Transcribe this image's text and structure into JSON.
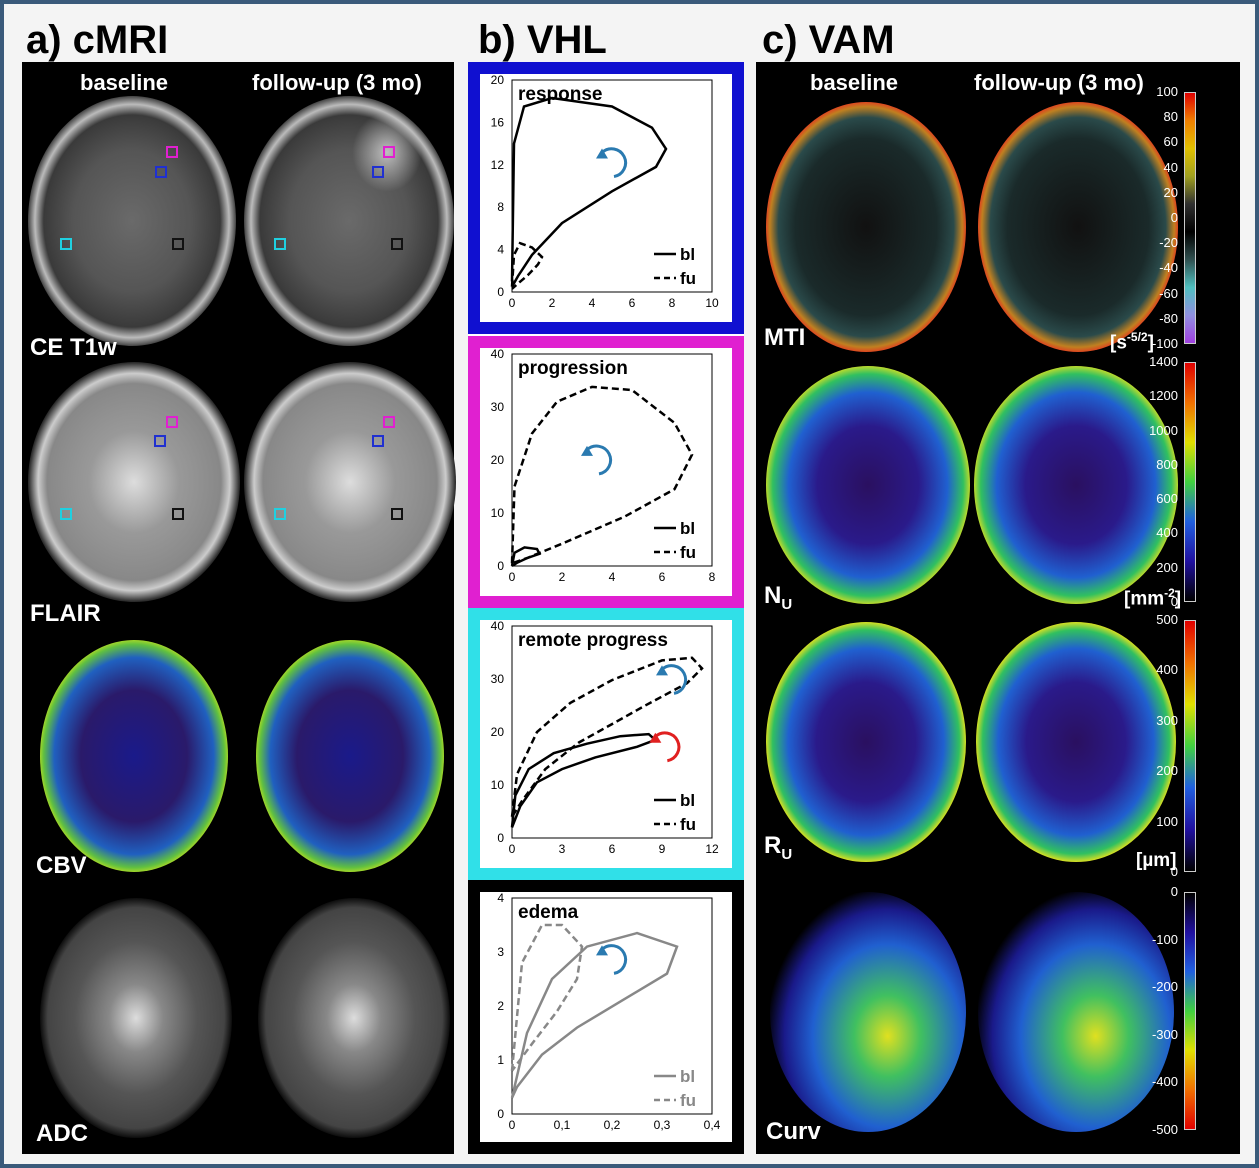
{
  "panel_titles": {
    "a": "a) cMRI",
    "b": "b) VHL",
    "c": "c) VAM"
  },
  "columns": {
    "baseline": "baseline",
    "followup": "follow-up (3 mo)"
  },
  "cmri_rows": [
    "CE T1w",
    "FLAIR",
    "CBV",
    "ADC"
  ],
  "vam_rows": {
    "mti": "MTI",
    "nu": "N",
    "nu_sub": "U",
    "ru": "R",
    "ru_sub": "U",
    "curv": "Curv"
  },
  "vam_units": {
    "mti_base": "[s",
    "mti_sup": "-5/2",
    "mti_close": "]",
    "nu_base": "[mm",
    "nu_sup": "-2",
    "nu_close": "]",
    "ru": "[µm]"
  },
  "colorbars": {
    "mti": [
      "100",
      "80",
      "60",
      "40",
      "20",
      "0",
      "-20",
      "-40",
      "-60",
      "-80",
      "-100"
    ],
    "nu": [
      "1400",
      "1200",
      "1000",
      "800",
      "600",
      "400",
      "200",
      "0"
    ],
    "ru": [
      "500",
      "400",
      "300",
      "200",
      "100",
      "0"
    ],
    "curv": [
      "0",
      "-100",
      "-200",
      "-300",
      "-400",
      "-500"
    ]
  },
  "colors": {
    "roi_magenta": "#e020d0",
    "roi_blue": "#2030d0",
    "roi_cyan": "#20d0e0",
    "roi_black": "#111111",
    "frame": "#3a5a7a",
    "arrow_blue": "#2a7ab0",
    "arrow_red": "#e02020"
  },
  "chart_data": [
    {
      "type": "line",
      "title": "response",
      "border": "#1010d0",
      "x_ticks": [
        "0",
        "2",
        "4",
        "6",
        "8",
        "10"
      ],
      "y_ticks": [
        "0",
        "4",
        "8",
        "12",
        "16",
        "20"
      ],
      "xlim": [
        0,
        10
      ],
      "ylim": [
        0,
        20
      ],
      "series": [
        {
          "name": "bl",
          "style": "solid"
        },
        {
          "name": "fu",
          "style": "dashed"
        }
      ],
      "legend": {
        "bl": "bl",
        "fu": "fu"
      }
    },
    {
      "type": "line",
      "title": "progression",
      "border": "#e020d0",
      "x_ticks": [
        "0",
        "2",
        "4",
        "6",
        "8"
      ],
      "y_ticks": [
        "0",
        "10",
        "20",
        "30",
        "40"
      ],
      "xlim": [
        0,
        8
      ],
      "ylim": [
        0,
        40
      ],
      "series": [
        {
          "name": "bl",
          "style": "solid"
        },
        {
          "name": "fu",
          "style": "dashed"
        }
      ],
      "legend": {
        "bl": "bl",
        "fu": "fu"
      }
    },
    {
      "type": "line",
      "title": "remote progress",
      "border": "#30e0e8",
      "x_ticks": [
        "0",
        "3",
        "6",
        "9",
        "12"
      ],
      "y_ticks": [
        "0",
        "10",
        "20",
        "30",
        "40"
      ],
      "xlim": [
        0,
        12
      ],
      "ylim": [
        0,
        40
      ],
      "series": [
        {
          "name": "bl",
          "style": "solid"
        },
        {
          "name": "fu",
          "style": "dashed"
        }
      ],
      "legend": {
        "bl": "bl",
        "fu": "fu"
      }
    },
    {
      "type": "line",
      "title": "edema",
      "border": "#000000",
      "x_ticks": [
        "0",
        "0,1",
        "0,2",
        "0,3",
        "0,4"
      ],
      "y_ticks": [
        "0",
        "1",
        "2",
        "3",
        "4"
      ],
      "xlim": [
        0,
        0.4
      ],
      "ylim": [
        0,
        4
      ],
      "series": [
        {
          "name": "bl",
          "style": "solid"
        },
        {
          "name": "fu",
          "style": "dashed"
        }
      ],
      "legend": {
        "bl": "bl",
        "fu": "fu"
      }
    }
  ]
}
